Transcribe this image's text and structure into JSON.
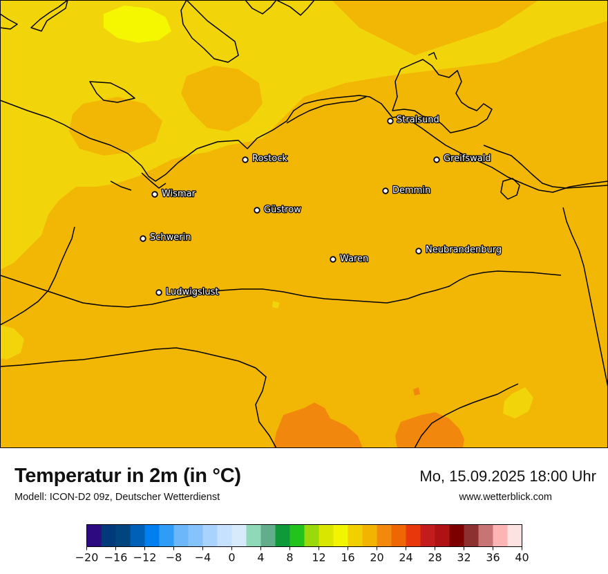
{
  "title": "Temperatur in 2m (in °C)",
  "model": "Modell: ICON-D2 09z, Deutscher Wetterdienst",
  "datetime": "Mo, 15.09.2025 18:00 Uhr",
  "website": "www.wetterblick.com",
  "cities": [
    {
      "name": "Stralsund"
    },
    {
      "name": "Rostock"
    },
    {
      "name": "Greifswald"
    },
    {
      "name": "Wismar"
    },
    {
      "name": "Demmin"
    },
    {
      "name": "Güstrow"
    },
    {
      "name": "Schwerin"
    },
    {
      "name": "Waren"
    },
    {
      "name": "Neubrandenburg"
    },
    {
      "name": "Ludwigslust"
    }
  ],
  "legend": {
    "colors": [
      "#2e0a80",
      "#003a7a",
      "#00457e",
      "#0060b8",
      "#0080ef",
      "#2f9cf6",
      "#6cb7f9",
      "#86c3fb",
      "#a9d3fd",
      "#c6e1fd",
      "#d7eafc",
      "#8fd8b8",
      "#63ae8a",
      "#0f9a3a",
      "#24c21c",
      "#9ad90c",
      "#d9e600",
      "#f1f500",
      "#f2cf00",
      "#f2b400",
      "#f2880c",
      "#ef6705",
      "#e8370a",
      "#c21c1c",
      "#ae1215",
      "#7d0000",
      "#8d3030",
      "#c77474",
      "#fdb4b4",
      "#fde2e2"
    ],
    "ticks": [
      "−20",
      "−16",
      "−12",
      "−8",
      "−4",
      "0",
      "4",
      "8",
      "12",
      "16",
      "20",
      "24",
      "28",
      "32",
      "36",
      "40"
    ],
    "min": -20,
    "max": 40
  },
  "field_colors": {
    "base": "#f2b705",
    "cooler": "#f2d40a",
    "coolest": "#f4f700",
    "warmer": "#f2870d"
  }
}
